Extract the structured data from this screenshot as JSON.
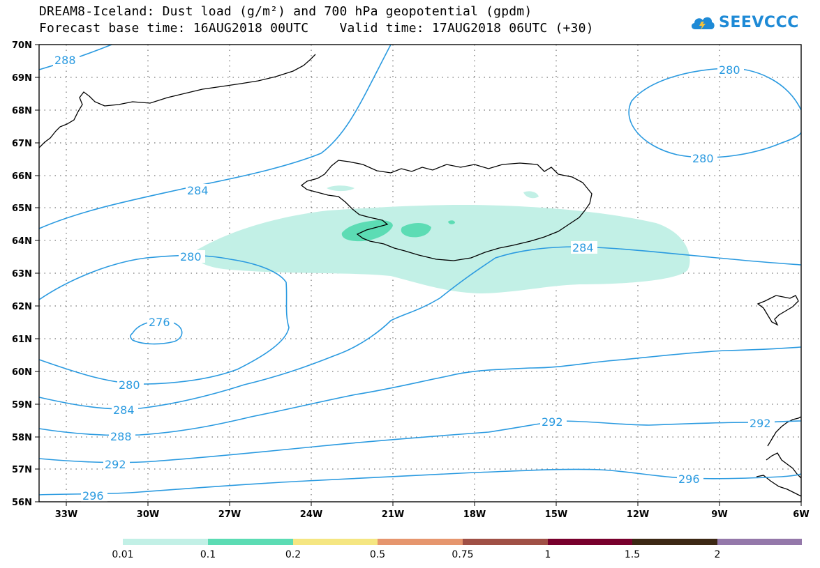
{
  "title": {
    "line1": "DREAM8-Iceland: Dust load (g/m²) and 700 hPa geopotential (gpdm)",
    "line2": "Forecast base time: 16AUG2018 00UTC    Valid time: 17AUG2018 06UTC (+30)"
  },
  "logo": {
    "text": "SEEVCCC",
    "icon": "cloud-icon",
    "color": "#1e8ad6"
  },
  "map": {
    "lat_range": [
      56,
      70
    ],
    "lon_range": [
      -34,
      -6
    ],
    "lat_ticks": [
      "70N",
      "69N",
      "68N",
      "67N",
      "66N",
      "65N",
      "64N",
      "63N",
      "62N",
      "61N",
      "60N",
      "59N",
      "58N",
      "57N",
      "56N"
    ],
    "lon_ticks": [
      "33W",
      "30W",
      "27W",
      "24W",
      "21W",
      "18W",
      "15W",
      "12W",
      "9W",
      "6W"
    ],
    "contour_color": "#2a9ae0",
    "contour_labels": [
      {
        "text": "288"
      },
      {
        "text": "280"
      },
      {
        "text": "280"
      },
      {
        "text": "284"
      },
      {
        "text": "280"
      },
      {
        "text": "284"
      },
      {
        "text": "276"
      },
      {
        "text": "280"
      },
      {
        "text": "284"
      },
      {
        "text": "288"
      },
      {
        "text": "292"
      },
      {
        "text": "296"
      },
      {
        "text": "292"
      },
      {
        "text": "292"
      },
      {
        "text": "296"
      }
    ]
  },
  "colorbar": {
    "labels": [
      "0.01",
      "0.1",
      "0.2",
      "0.5",
      "0.75",
      "1",
      "1.5",
      "2"
    ],
    "colors": [
      "#c2f0e6",
      "#5cdcb4",
      "#f5e682",
      "#e6966e",
      "#a05046",
      "#78002d",
      "#3c2814",
      "#9478aa"
    ]
  }
}
